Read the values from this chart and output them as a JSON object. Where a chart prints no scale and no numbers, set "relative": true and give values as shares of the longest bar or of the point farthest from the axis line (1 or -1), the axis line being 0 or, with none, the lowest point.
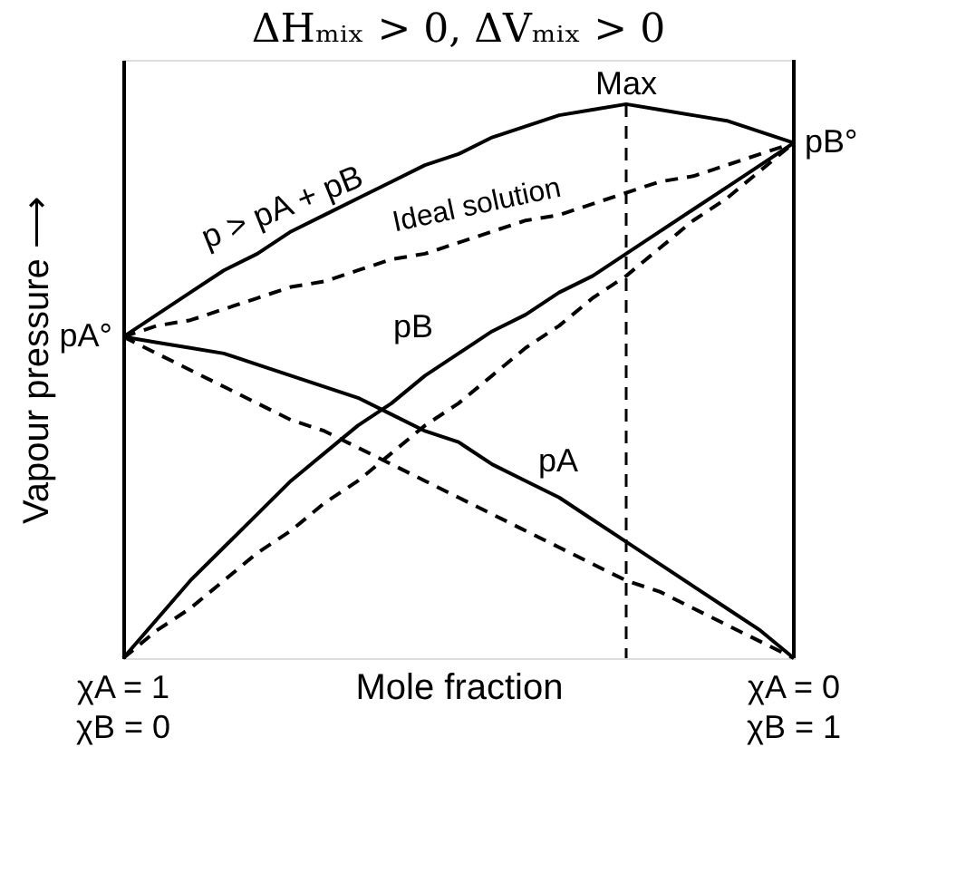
{
  "chart_data": {
    "type": "line",
    "title": "ΔHₘᵢₓ > 0, ΔVₘᵢₓ > 0",
    "xlabel": "Mole fraction",
    "ylabel": "Vapour pressure ⟶",
    "relative": true,
    "tick_labels": false,
    "grid": false,
    "marker": "none",
    "categories": [
      null,
      null,
      null,
      null,
      null,
      null,
      null,
      null,
      null,
      null,
      null,
      null,
      null,
      null,
      null,
      null,
      null,
      null,
      null,
      null,
      null
    ],
    "series": [
      {
        "color": "#000000",
        "line_style": "solid",
        "values": [
          0.58,
          0.62,
          0.66,
          0.7,
          0.73,
          0.77,
          0.8,
          0.83,
          0.86,
          0.89,
          0.91,
          0.94,
          0.96,
          0.98,
          0.99,
          1.0,
          0.99,
          0.98,
          0.97,
          0.95,
          0.93
        ]
      },
      {
        "color": "#000000",
        "line_style": "solid",
        "values": [
          0.58,
          0.57,
          0.56,
          0.55,
          0.53,
          0.51,
          0.49,
          0.47,
          0.44,
          0.41,
          0.39,
          0.35,
          0.32,
          0.29,
          0.25,
          0.21,
          0.17,
          0.13,
          0.09,
          0.05,
          0
        ]
      },
      {
        "color": "#000000",
        "line_style": "solid",
        "values": [
          0,
          0.07,
          0.14,
          0.2,
          0.26,
          0.32,
          0.37,
          0.42,
          0.46,
          0.51,
          0.55,
          0.59,
          0.62,
          0.66,
          0.69,
          0.73,
          0.77,
          0.81,
          0.85,
          0.89,
          0.93
        ]
      },
      {
        "color": "#000000",
        "line_style": "dashed",
        "values": [
          0.58,
          0.6,
          0.61,
          0.63,
          0.65,
          0.67,
          0.68,
          0.7,
          0.72,
          0.73,
          0.75,
          0.77,
          0.79,
          0.8,
          0.82,
          0.84,
          0.86,
          0.87,
          0.89,
          0.91,
          0.93
        ]
      },
      {
        "color": "#000000",
        "line_style": "dashed",
        "values": [
          0.58,
          0.55,
          0.52,
          0.49,
          0.46,
          0.43,
          0.41,
          0.38,
          0.35,
          0.32,
          0.29,
          0.26,
          0.23,
          0.2,
          0.17,
          0.14,
          0.12,
          0.09,
          0.06,
          0.03,
          0
        ]
      },
      {
        "color": "#000000",
        "line_style": "dashed",
        "values": [
          0,
          0.05,
          0.09,
          0.14,
          0.19,
          0.23,
          0.28,
          0.32,
          0.37,
          0.42,
          0.46,
          0.51,
          0.56,
          0.6,
          0.65,
          0.69,
          0.74,
          0.79,
          0.83,
          0.88,
          0.93
        ]
      }
    ],
    "annotations": [
      "Max",
      "p > pA + pB",
      "Ideal solution",
      "pB",
      "pA",
      "pA°",
      "pB°",
      "χA = 1\nχB = 0",
      "χA = 0\nχB = 1"
    ]
  }
}
